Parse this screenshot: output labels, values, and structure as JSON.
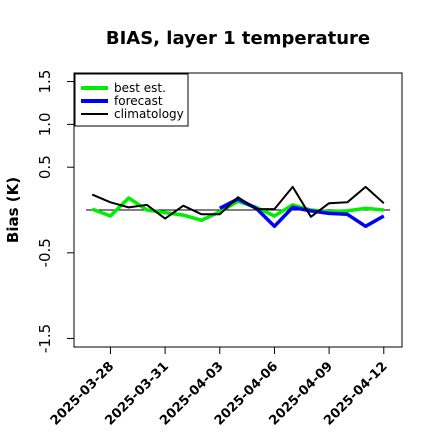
{
  "chart_data": {
    "type": "line",
    "title": "BIAS, layer 1 temperature",
    "xlabel": "",
    "ylabel": "Bias (K)",
    "ylim": [
      -1.6,
      1.6
    ],
    "yticks": [
      -1.5,
      -0.5,
      0.5,
      1.0,
      1.5
    ],
    "ytick_labels": [
      "-1.5",
      "-0.5",
      "0.5",
      "1.0",
      "1.5"
    ],
    "xlim": [
      "2025-03-26",
      "2025-04-13"
    ],
    "xticks": [
      "2025-03-28",
      "2025-03-31",
      "2025-04-03",
      "2025-04-06",
      "2025-04-09",
      "2025-04-12"
    ],
    "highlight_tick": "2025-04-03",
    "zero_line": true,
    "grid": false,
    "legend_position": "top-left",
    "series": [
      {
        "name": "best est.",
        "color": "#00ee00",
        "x": [
          "2025-03-27",
          "2025-03-28",
          "2025-03-29",
          "2025-03-30",
          "2025-03-31",
          "2025-04-01",
          "2025-04-02",
          "2025-04-03",
          "2025-04-04",
          "2025-04-05",
          "2025-04-06",
          "2025-04-07",
          "2025-04-08",
          "2025-04-09",
          "2025-04-10",
          "2025-04-11",
          "2025-04-12"
        ],
        "values": [
          0.01,
          -0.07,
          0.14,
          0.0,
          -0.03,
          -0.06,
          -0.12,
          -0.02,
          0.1,
          0.03,
          -0.07,
          0.06,
          0.0,
          -0.02,
          -0.01,
          0.02,
          0.0
        ]
      },
      {
        "name": "forecast",
        "color": "#0000ff",
        "x": [
          "2025-04-03",
          "2025-04-04",
          "2025-04-05",
          "2025-04-06",
          "2025-04-07",
          "2025-04-08",
          "2025-04-09",
          "2025-04-10",
          "2025-04-11",
          "2025-04-12"
        ],
        "values": [
          0.02,
          0.13,
          0.02,
          -0.19,
          0.03,
          -0.01,
          -0.04,
          -0.05,
          -0.19,
          -0.07
        ]
      },
      {
        "name": "climatology",
        "color": "#000000",
        "x": [
          "2025-03-27",
          "2025-03-28",
          "2025-03-29",
          "2025-03-30",
          "2025-03-31",
          "2025-04-01",
          "2025-04-02",
          "2025-04-03",
          "2025-04-04",
          "2025-04-05",
          "2025-04-06",
          "2025-04-07",
          "2025-04-08",
          "2025-04-09",
          "2025-04-10",
          "2025-04-11",
          "2025-04-12"
        ],
        "values": [
          0.18,
          0.09,
          0.03,
          0.06,
          -0.1,
          0.05,
          -0.05,
          -0.05,
          0.15,
          0.01,
          0.01,
          0.27,
          -0.08,
          0.08,
          0.09,
          0.27,
          0.08
        ]
      }
    ]
  }
}
